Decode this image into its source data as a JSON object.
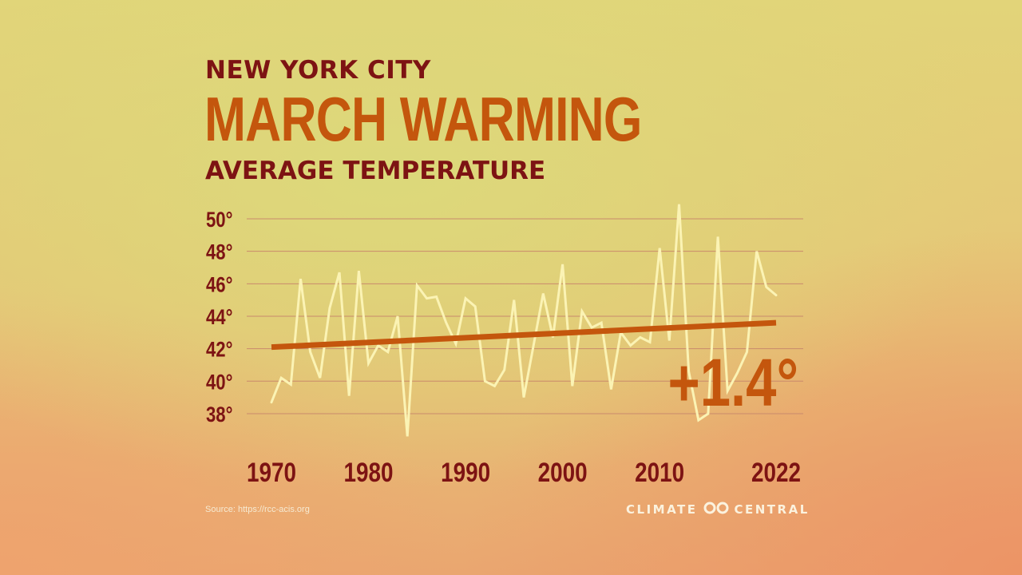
{
  "header": {
    "kicker": "NEW YORK CITY",
    "title": "MARCH WARMING"
  },
  "chart_data": {
    "type": "line",
    "title": "AVERAGE TEMPERATURE",
    "y_tick_labels": [
      "50°",
      "48°",
      "46°",
      "44°",
      "42°",
      "40°",
      "38°"
    ],
    "y_ticks": [
      50,
      48,
      46,
      44,
      42,
      40,
      38
    ],
    "ylim": [
      36,
      51
    ],
    "x_tick_labels": [
      "1970",
      "1980",
      "1990",
      "2000",
      "2010",
      "2022"
    ],
    "x_ticks": [
      1970,
      1980,
      1990,
      2000,
      2010,
      2022
    ],
    "xlim": [
      1970,
      2022
    ],
    "grid": true,
    "series": [
      {
        "x": [
          1970,
          1971,
          1972,
          1973,
          1974,
          1975,
          1976,
          1977,
          1978,
          1979,
          1980,
          1981,
          1982,
          1983,
          1984,
          1985,
          1986,
          1987,
          1988,
          1989,
          1990,
          1991,
          1992,
          1993,
          1994,
          1995,
          1996,
          1997,
          1998,
          1999,
          2000,
          2001,
          2002,
          2003,
          2004,
          2005,
          2006,
          2007,
          2008,
          2009,
          2010,
          2011,
          2012,
          2013,
          2014,
          2015,
          2016,
          2017,
          2018,
          2019,
          2020,
          2021,
          2022
        ],
        "values": [
          38.7,
          40.2,
          39.8,
          46.3,
          41.8,
          40.2,
          44.5,
          46.7,
          39.1,
          46.8,
          41.1,
          42.2,
          41.8,
          44.0,
          36.6,
          45.9,
          45.1,
          45.2,
          43.6,
          42.3,
          45.1,
          44.6,
          40.0,
          39.7,
          40.7,
          45.0,
          39.0,
          42.2,
          45.4,
          42.7,
          47.2,
          39.7,
          44.3,
          43.3,
          43.6,
          39.5,
          43.0,
          42.2,
          42.7,
          42.4,
          48.2,
          42.5,
          50.9,
          40.6,
          37.6,
          38.0,
          48.9,
          39.4,
          40.5,
          41.8,
          48.0,
          45.8,
          45.3
        ],
        "color": "#fbf3b4"
      }
    ],
    "trend": {
      "start": [
        1970,
        42.1
      ],
      "end": [
        2022,
        43.6
      ],
      "color": "#c4560d"
    },
    "annotation": "+1.4°"
  },
  "footer": {
    "source": "Source: https://rcc-acis.org",
    "logo_left": "CLIMATE",
    "logo_right": "CENTRAL"
  },
  "colors": {
    "dark_red": "#7d1313",
    "orange": "#c4560d",
    "line": "#fbf3b4",
    "grid": "#c98a6c"
  }
}
